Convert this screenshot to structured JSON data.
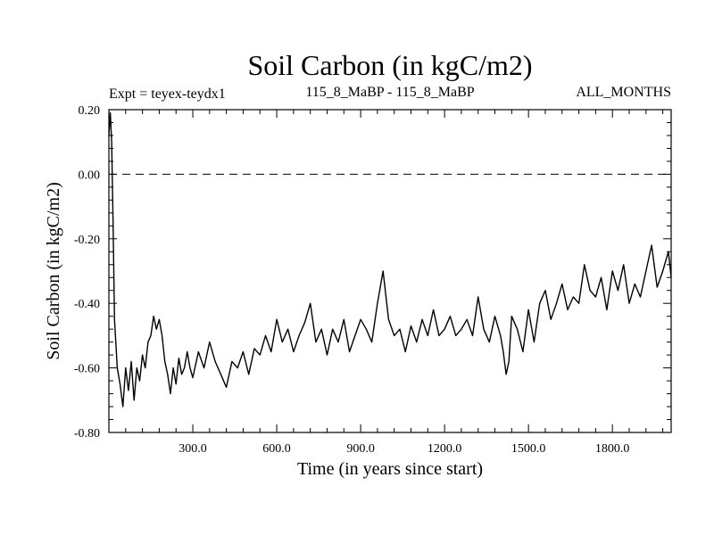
{
  "chart_data": {
    "type": "line",
    "title": "Soil Carbon (in kgC/m2)",
    "left_label": "Expt = teyex-teydx1",
    "center_label": "115_8_MaBP - 115_8_MaBP",
    "right_label": "ALL_MONTHS",
    "xlabel": "Time (in years since start)",
    "ylabel": "Soil Carbon (in kgC/m2)",
    "xlim": [
      0,
      2010
    ],
    "ylim": [
      -0.8,
      0.2
    ],
    "x_ticks": [
      300,
      600,
      900,
      1200,
      1500,
      1800
    ],
    "x_tick_labels": [
      "300.0",
      "600.0",
      "900.0",
      "1200.0",
      "1500.0",
      "1800.0"
    ],
    "y_ticks": [
      -0.8,
      -0.6,
      -0.4,
      -0.2,
      0.0,
      0.2
    ],
    "y_tick_labels": [
      "-0.80",
      "-0.60",
      "-0.40",
      "-0.20",
      "0.00",
      "0.20"
    ],
    "reference_line": 0.0,
    "series": [
      {
        "name": "Soil Carbon",
        "color": "#000000",
        "x": [
          0,
          5,
          10,
          15,
          20,
          30,
          40,
          50,
          60,
          70,
          80,
          90,
          100,
          110,
          120,
          130,
          140,
          150,
          160,
          170,
          180,
          190,
          200,
          210,
          220,
          230,
          240,
          250,
          260,
          270,
          280,
          290,
          300,
          320,
          340,
          360,
          380,
          400,
          420,
          440,
          460,
          480,
          500,
          520,
          540,
          560,
          580,
          600,
          620,
          640,
          660,
          680,
          700,
          720,
          740,
          760,
          780,
          800,
          820,
          840,
          860,
          880,
          900,
          920,
          940,
          960,
          980,
          1000,
          1020,
          1040,
          1060,
          1080,
          1100,
          1120,
          1140,
          1160,
          1180,
          1200,
          1220,
          1240,
          1260,
          1280,
          1300,
          1320,
          1340,
          1360,
          1380,
          1400,
          1410,
          1420,
          1430,
          1440,
          1460,
          1480,
          1500,
          1520,
          1540,
          1560,
          1580,
          1600,
          1620,
          1640,
          1660,
          1680,
          1700,
          1720,
          1740,
          1760,
          1780,
          1800,
          1820,
          1840,
          1860,
          1880,
          1900,
          1920,
          1940,
          1960,
          1980,
          2000,
          2010
        ],
        "y": [
          0.12,
          0.19,
          0.1,
          -0.15,
          -0.45,
          -0.6,
          -0.65,
          -0.72,
          -0.6,
          -0.67,
          -0.58,
          -0.7,
          -0.6,
          -0.64,
          -0.56,
          -0.6,
          -0.52,
          -0.5,
          -0.44,
          -0.48,
          -0.45,
          -0.5,
          -0.58,
          -0.62,
          -0.68,
          -0.6,
          -0.65,
          -0.57,
          -0.62,
          -0.6,
          -0.55,
          -0.6,
          -0.63,
          -0.55,
          -0.6,
          -0.52,
          -0.58,
          -0.62,
          -0.66,
          -0.58,
          -0.6,
          -0.55,
          -0.62,
          -0.54,
          -0.56,
          -0.5,
          -0.55,
          -0.45,
          -0.52,
          -0.48,
          -0.55,
          -0.5,
          -0.46,
          -0.4,
          -0.52,
          -0.48,
          -0.56,
          -0.48,
          -0.52,
          -0.45,
          -0.55,
          -0.5,
          -0.45,
          -0.48,
          -0.52,
          -0.4,
          -0.3,
          -0.45,
          -0.5,
          -0.48,
          -0.55,
          -0.47,
          -0.52,
          -0.45,
          -0.5,
          -0.42,
          -0.5,
          -0.48,
          -0.44,
          -0.5,
          -0.48,
          -0.45,
          -0.5,
          -0.38,
          -0.48,
          -0.52,
          -0.44,
          -0.5,
          -0.55,
          -0.62,
          -0.58,
          -0.44,
          -0.48,
          -0.55,
          -0.42,
          -0.52,
          -0.4,
          -0.36,
          -0.45,
          -0.4,
          -0.34,
          -0.42,
          -0.38,
          -0.4,
          -0.28,
          -0.36,
          -0.38,
          -0.32,
          -0.42,
          -0.3,
          -0.36,
          -0.28,
          -0.4,
          -0.34,
          -0.38,
          -0.3,
          -0.22,
          -0.35,
          -0.3,
          -0.24,
          -0.32
        ]
      }
    ]
  }
}
